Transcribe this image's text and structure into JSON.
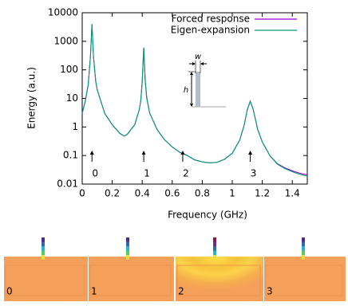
{
  "chart_data": {
    "type": "line",
    "xlabel": "Frequency (GHz)",
    "ylabel": "Energy (a.u.)",
    "x": [
      0,
      0.02,
      0.04,
      0.055,
      0.065,
      0.075,
      0.09,
      0.1,
      0.15,
      0.2,
      0.25,
      0.28,
      0.3,
      0.35,
      0.38,
      0.39,
      0.4,
      0.41,
      0.42,
      0.43,
      0.45,
      0.5,
      0.55,
      0.6,
      0.65,
      0.67,
      0.7,
      0.75,
      0.8,
      0.85,
      0.9,
      0.95,
      1.0,
      1.05,
      1.08,
      1.1,
      1.12,
      1.14,
      1.17,
      1.2,
      1.25,
      1.3,
      1.35,
      1.4,
      1.45,
      1.5
    ],
    "series": [
      {
        "name": "Forced response",
        "color": "#9400d3",
        "values": [
          3,
          8,
          30,
          300,
          4000,
          300,
          40,
          20,
          3,
          1.2,
          0.6,
          0.48,
          0.55,
          1.2,
          4,
          8,
          40,
          600,
          40,
          11,
          3,
          0.8,
          0.35,
          0.2,
          0.13,
          0.12,
          0.1,
          0.07,
          0.06,
          0.055,
          0.058,
          0.075,
          0.12,
          0.35,
          1.2,
          4,
          8,
          4,
          0.8,
          0.3,
          0.1,
          0.052,
          0.037,
          0.029,
          0.024,
          0.021
        ]
      },
      {
        "name": "Eigen-expansion",
        "color": "#009e73",
        "values": [
          3,
          8,
          30,
          300,
          4000,
          300,
          40,
          20,
          3,
          1.2,
          0.6,
          0.48,
          0.55,
          1.2,
          4,
          8,
          40,
          600,
          40,
          10,
          3,
          0.8,
          0.35,
          0.2,
          0.13,
          0.115,
          0.1,
          0.07,
          0.06,
          0.055,
          0.058,
          0.075,
          0.12,
          0.35,
          1.2,
          4,
          8,
          4,
          0.8,
          0.3,
          0.1,
          0.05,
          0.035,
          0.027,
          0.022,
          0.019
        ]
      }
    ],
    "xlim": [
      0,
      1.5
    ],
    "xticks": [
      0,
      0.2,
      0.4,
      0.6,
      0.8,
      1,
      1.2,
      1.4
    ],
    "ylim": [
      0.01,
      10000
    ],
    "yticks": [
      0.01,
      0.1,
      1,
      10,
      100,
      1000,
      10000
    ],
    "log_y": true,
    "grid": false,
    "legend": "top-right",
    "annotations": [
      {
        "text": "0",
        "x": 0.065
      },
      {
        "text": "1",
        "x": 0.41
      },
      {
        "text": "2",
        "x": 0.67
      },
      {
        "text": "3",
        "x": 1.12
      }
    ]
  },
  "inset": {
    "width_label": "w",
    "height_label": "h"
  },
  "panels": [
    "0",
    "1",
    "2",
    "3"
  ]
}
